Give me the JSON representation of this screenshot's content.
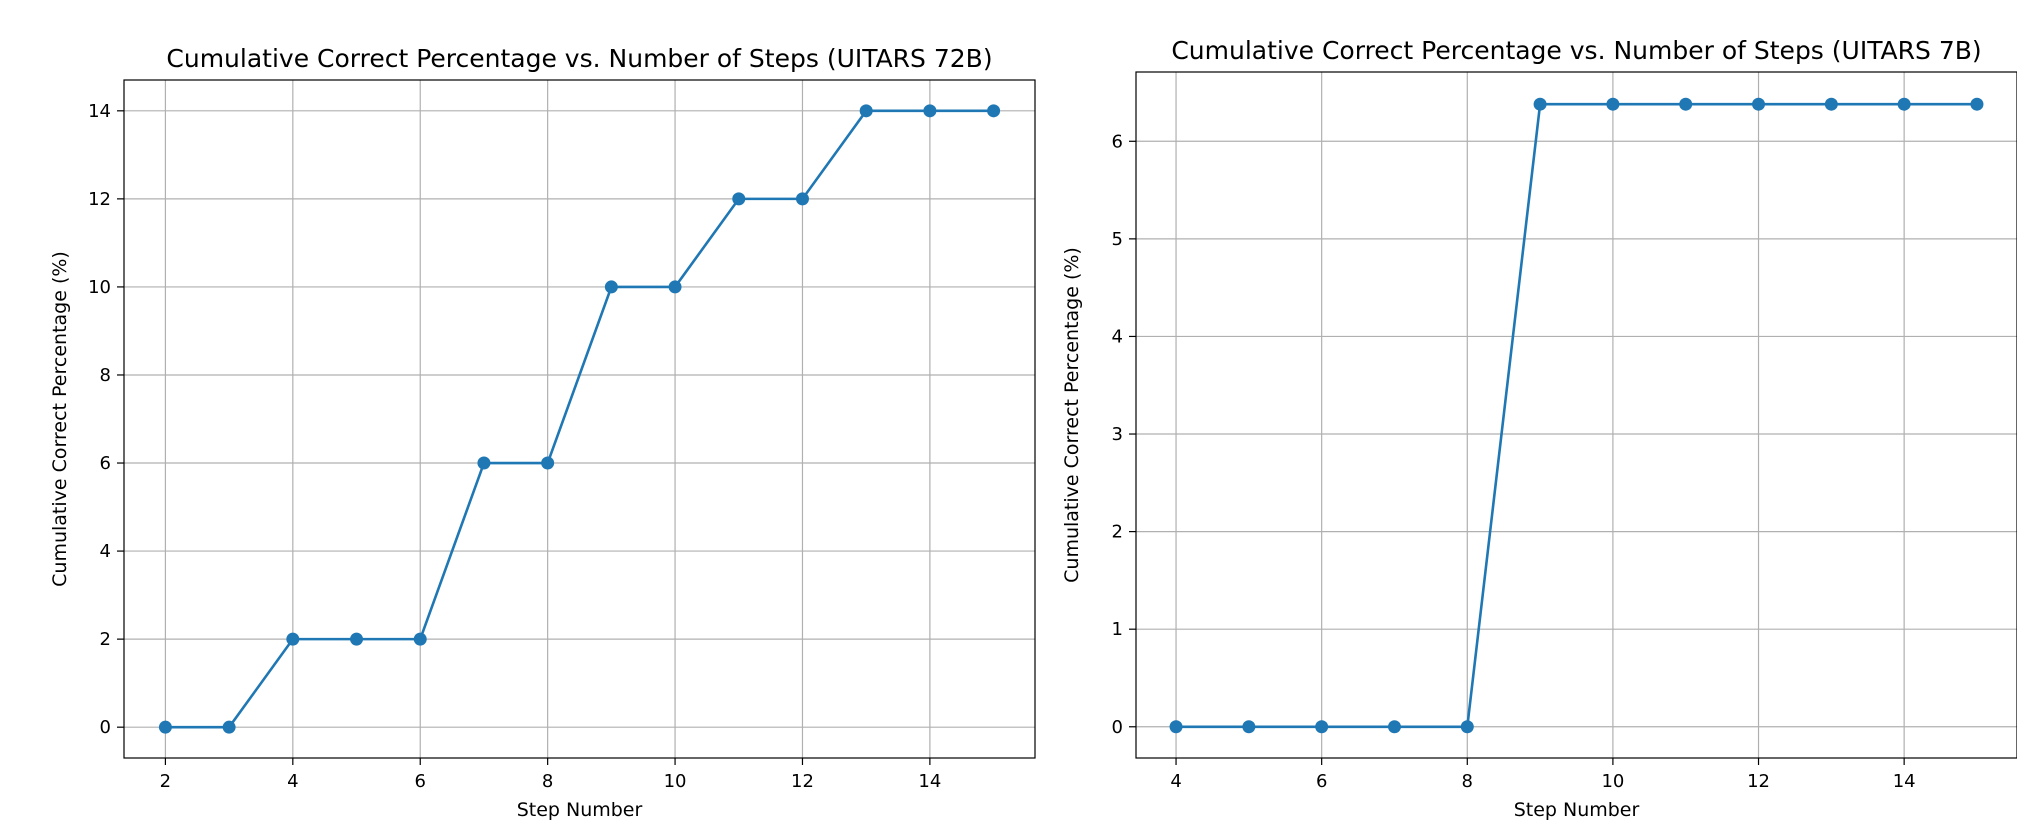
{
  "colors": {
    "series": "#1f77b4",
    "grid": "#b0b0b0"
  },
  "chart_data": [
    {
      "type": "line",
      "title": "Cumulative Correct Percentage vs. Number of Steps (UITARS 72B)",
      "xlabel": "Step Number",
      "ylabel": "Cumulative Correct Percentage (%)",
      "xlim": [
        1.35,
        15.65
      ],
      "ylim": [
        -0.7,
        14.7
      ],
      "xticks": [
        2,
        4,
        6,
        8,
        10,
        12,
        14
      ],
      "yticks": [
        0,
        2,
        4,
        6,
        8,
        10,
        12,
        14
      ],
      "grid": true,
      "marker": "circle",
      "x": [
        2,
        3,
        4,
        5,
        6,
        7,
        8,
        9,
        10,
        11,
        12,
        13,
        14,
        15
      ],
      "y": [
        0,
        0,
        2,
        2,
        2,
        6,
        6,
        10,
        10,
        12,
        12,
        14,
        14,
        14
      ]
    },
    {
      "type": "line",
      "title": "Cumulative Correct Percentage vs. Number of Steps (UITARS 7B)",
      "xlabel": "Step Number",
      "ylabel": "Cumulative Correct Percentage (%)",
      "xlim": [
        3.45,
        15.55
      ],
      "ylim": [
        -0.32,
        6.71
      ],
      "xticks": [
        4,
        6,
        8,
        10,
        12,
        14
      ],
      "yticks": [
        0,
        1,
        2,
        3,
        4,
        5,
        6
      ],
      "grid": true,
      "marker": "circle",
      "x": [
        4,
        5,
        6,
        7,
        8,
        9,
        10,
        11,
        12,
        13,
        14,
        15
      ],
      "y": [
        0,
        0,
        0,
        0,
        0,
        6.38,
        6.38,
        6.38,
        6.38,
        6.38,
        6.38,
        6.38
      ]
    }
  ]
}
